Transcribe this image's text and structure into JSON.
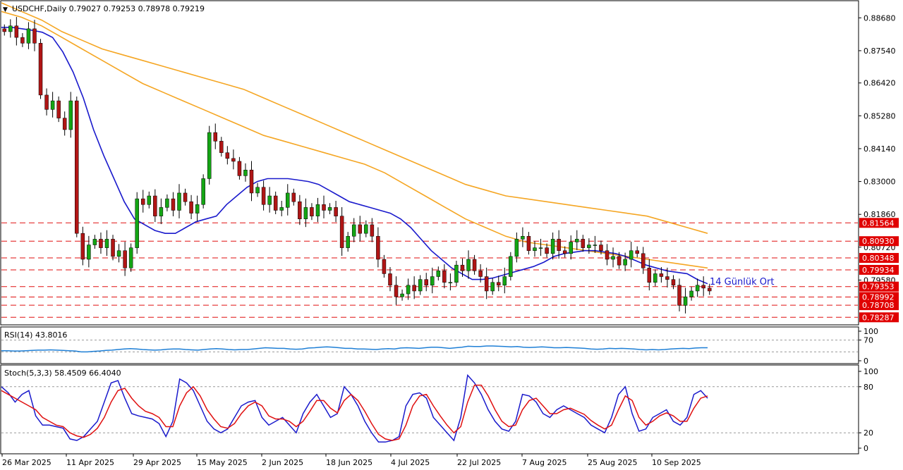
{
  "header": {
    "symbol_line": "USDCHF,Daily  0.79027 0.79253 0.78978 0.79219"
  },
  "colors": {
    "bull": "#14a514",
    "bear": "#b01515",
    "ma14": "#1a1acc",
    "ma_slow": "#f5a623",
    "level_line": "#e01010",
    "level_label_bg": "#e00000",
    "rsi": "#1e7fd6",
    "stoch_main": "#1a1acc",
    "stoch_signal": "#e01010"
  },
  "chart_data": [
    {
      "type": "candlestick",
      "title": "USDCHF,Daily",
      "last_bar": {
        "open": 0.79027,
        "high": 0.79253,
        "low": 0.78978,
        "close": 0.79219
      },
      "ylim": [
        0.7805,
        0.8925
      ],
      "y_ticks": [
        "0.88680",
        "0.87540",
        "0.86420",
        "0.85280",
        "0.84140",
        "0.83000",
        "0.81860",
        "0.80720",
        "0.79580"
      ],
      "x_ticks": [
        "26 Mar 2025",
        "11 Apr 2025",
        "29 Apr 2025",
        "15 May 2025",
        "2 Jun 2025",
        "18 Jun 2025",
        "4 Jul 2025",
        "22 Jul 2025",
        "7 Aug 2025",
        "25 Aug 2025",
        "10 Sep 2025"
      ],
      "horizontal_levels": [
        {
          "value": 0.81564,
          "label": "0.81564"
        },
        {
          "value": 0.8093,
          "label": "0.80930"
        },
        {
          "value": 0.80348,
          "label": "0.80348"
        },
        {
          "value": 0.79934,
          "label": "0.79934"
        },
        {
          "value": 0.79353,
          "label": "0.79353"
        },
        {
          "value": 0.78992,
          "label": "0.78992"
        },
        {
          "value": 0.78708,
          "label": "0.78708"
        },
        {
          "value": 0.78287,
          "label": "0.78287"
        }
      ],
      "annotation": "14 Günlük Ort",
      "close_series": [
        0.882,
        0.884,
        0.88,
        0.878,
        0.883,
        0.878,
        0.86,
        0.855,
        0.858,
        0.852,
        0.848,
        0.858,
        0.812,
        0.803,
        0.808,
        0.81,
        0.807,
        0.81,
        0.804,
        0.806,
        0.8,
        0.807,
        0.824,
        0.822,
        0.825,
        0.818,
        0.821,
        0.824,
        0.82,
        0.826,
        0.823,
        0.819,
        0.822,
        0.831,
        0.847,
        0.844,
        0.84,
        0.838,
        0.837,
        0.832,
        0.834,
        0.826,
        0.828,
        0.822,
        0.825,
        0.82,
        0.821,
        0.826,
        0.823,
        0.817,
        0.821,
        0.818,
        0.822,
        0.82,
        0.821,
        0.818,
        0.807,
        0.811,
        0.815,
        0.812,
        0.815,
        0.811,
        0.803,
        0.798,
        0.794,
        0.79,
        0.791,
        0.794,
        0.792,
        0.796,
        0.794,
        0.797,
        0.799,
        0.795,
        0.795,
        0.801,
        0.799,
        0.803,
        0.799,
        0.797,
        0.792,
        0.795,
        0.794,
        0.797,
        0.804,
        0.81,
        0.811,
        0.806,
        0.807,
        0.807,
        0.805,
        0.81,
        0.806,
        0.805,
        0.809,
        0.81,
        0.807,
        0.808,
        0.808,
        0.806,
        0.803,
        0.804,
        0.801,
        0.803,
        0.806,
        0.805,
        0.8,
        0.795,
        0.798,
        0.797,
        0.796,
        0.794,
        0.787,
        0.79,
        0.792,
        0.794,
        0.793,
        0.792
      ],
      "ma14_series": [
        0.8835,
        0.8835,
        0.883,
        0.8825,
        0.8818,
        0.88,
        0.875,
        0.868,
        0.859,
        0.848,
        0.839,
        0.831,
        0.823,
        0.817,
        0.815,
        0.813,
        0.812,
        0.812,
        0.814,
        0.816,
        0.817,
        0.818,
        0.822,
        0.825,
        0.828,
        0.83,
        0.831,
        0.831,
        0.831,
        0.8305,
        0.83,
        0.829,
        0.827,
        0.825,
        0.823,
        0.822,
        0.821,
        0.82,
        0.819,
        0.817,
        0.814,
        0.81,
        0.806,
        0.803,
        0.8,
        0.798,
        0.796,
        0.796,
        0.7965,
        0.7975,
        0.7985,
        0.7995,
        0.8005,
        0.802,
        0.804,
        0.805,
        0.8055,
        0.806,
        0.806,
        0.8055,
        0.805,
        0.804,
        0.8025,
        0.801,
        0.8,
        0.799,
        0.7985,
        0.798,
        0.796,
        0.7945
      ],
      "ma_fast_orange_series": [
        0.889,
        0.887,
        0.884,
        0.88,
        0.876,
        0.872,
        0.868,
        0.864,
        0.861,
        0.858,
        0.855,
        0.852,
        0.849,
        0.846,
        0.844,
        0.842,
        0.84,
        0.838,
        0.836,
        0.833,
        0.829,
        0.825,
        0.821,
        0.817,
        0.814,
        0.811,
        0.809,
        0.808,
        0.807,
        0.806,
        0.805,
        0.804,
        0.803,
        0.802,
        0.801,
        0.8
      ],
      "ma_slow_orange_series": [
        0.892,
        0.889,
        0.886,
        0.882,
        0.879,
        0.876,
        0.874,
        0.872,
        0.87,
        0.868,
        0.866,
        0.864,
        0.862,
        0.859,
        0.856,
        0.853,
        0.85,
        0.847,
        0.844,
        0.841,
        0.838,
        0.835,
        0.832,
        0.829,
        0.827,
        0.825,
        0.824,
        0.823,
        0.822,
        0.821,
        0.82,
        0.819,
        0.818,
        0.816,
        0.814,
        0.812
      ]
    },
    {
      "type": "line",
      "title": "RSI(14) 43.8016",
      "ylim": [
        0,
        100
      ],
      "y_ticks": [
        "100",
        "70",
        "0"
      ],
      "values": [
        34,
        34,
        33,
        33,
        34,
        35,
        36,
        36,
        37,
        36,
        35,
        34,
        33,
        30,
        30,
        32,
        33,
        35,
        36,
        38,
        40,
        41,
        40,
        38,
        37,
        36,
        37,
        39,
        40,
        40,
        38,
        37,
        36,
        38,
        40,
        41,
        40,
        38,
        37,
        38,
        38,
        40,
        42,
        44,
        43,
        42,
        42,
        40,
        39,
        40,
        43,
        44,
        46,
        47,
        46,
        44,
        42,
        42,
        40,
        40,
        39,
        38,
        40,
        41,
        40,
        43,
        44,
        43,
        42,
        44,
        46,
        46,
        44,
        42,
        44,
        46,
        49,
        48,
        48,
        50,
        50,
        49,
        48,
        47,
        48,
        46,
        45,
        46,
        47,
        46,
        44,
        44,
        45,
        44,
        43,
        42,
        40,
        39,
        40,
        42,
        41,
        42,
        41,
        40,
        38,
        37,
        38,
        37,
        38,
        40,
        41,
        42,
        41,
        43,
        44,
        44
      ],
      "reference_lines": [
        70,
        30
      ]
    },
    {
      "type": "line",
      "title": "Stoch(5,3,3) 58.4509 66.4040",
      "ylim": [
        0,
        100
      ],
      "y_ticks": [
        "100",
        "80",
        "20",
        "0"
      ],
      "series": [
        {
          "values": [
            80,
            72,
            60,
            70,
            75,
            42,
            30,
            30,
            28,
            26,
            12,
            10,
            15,
            25,
            35,
            60,
            85,
            88,
            65,
            45,
            42,
            40,
            38,
            32,
            15,
            35,
            90,
            85,
            75,
            55,
            35,
            25,
            20,
            25,
            40,
            55,
            60,
            62,
            40,
            30,
            35,
            40,
            30,
            20,
            45,
            60,
            70,
            55,
            40,
            45,
            80,
            70,
            55,
            35,
            20,
            8,
            8,
            10,
            15,
            55,
            70,
            72,
            65,
            40,
            30,
            20,
            10,
            40,
            95,
            85,
            70,
            50,
            35,
            25,
            22,
            35,
            70,
            68,
            60,
            45,
            40,
            50,
            55,
            50,
            45,
            40,
            30,
            25,
            20,
            40,
            70,
            80,
            45,
            22,
            25,
            40,
            45,
            50,
            35,
            30,
            40,
            70,
            75,
            65
          ]
        },
        {
          "values": [
            75,
            70,
            65,
            60,
            55,
            50,
            40,
            35,
            30,
            28,
            20,
            16,
            14,
            18,
            26,
            40,
            60,
            75,
            78,
            65,
            55,
            48,
            45,
            40,
            28,
            28,
            55,
            72,
            80,
            68,
            50,
            38,
            28,
            26,
            32,
            45,
            55,
            60,
            55,
            42,
            38,
            38,
            35,
            28,
            35,
            48,
            62,
            62,
            52,
            46,
            62,
            70,
            62,
            48,
            32,
            18,
            12,
            10,
            12,
            30,
            55,
            68,
            70,
            55,
            42,
            30,
            20,
            28,
            60,
            82,
            82,
            68,
            50,
            35,
            28,
            30,
            50,
            62,
            65,
            55,
            45,
            45,
            50,
            52,
            48,
            44,
            36,
            30,
            25,
            30,
            50,
            68,
            62,
            40,
            30,
            35,
            42,
            46,
            42,
            35,
            35,
            52,
            65,
            68
          ]
        }
      ],
      "reference_lines": [
        80,
        20
      ]
    }
  ]
}
